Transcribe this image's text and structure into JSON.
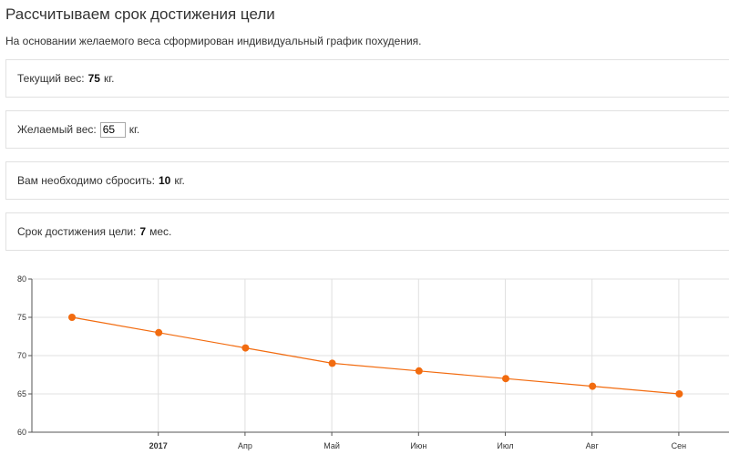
{
  "header": {
    "title": "Рассчитываем срок достижения цели",
    "intro": "На основании желаемого веса сформирован индивидуальный график похудения."
  },
  "current_weight": {
    "label": "Текущий вес:",
    "value": "75",
    "unit": "кг."
  },
  "target_weight": {
    "label": "Желаемый вес:",
    "value": "65",
    "unit": "кг."
  },
  "to_lose": {
    "label": "Вам необходимо сбросить:",
    "value": "10",
    "unit": "кг."
  },
  "deadline": {
    "label": "Срок достижения цели:",
    "value": "7",
    "unit": "мес."
  },
  "chart_data": {
    "type": "line",
    "title": "",
    "xlabel": "",
    "ylabel": "",
    "x": [
      "2017-02",
      "2017-03",
      "2017-04",
      "2017-05",
      "2017-06",
      "2017-07",
      "2017-08",
      "2017-09"
    ],
    "series": [
      {
        "values": [
          75,
          73,
          71,
          69,
          68,
          67,
          66,
          65
        ],
        "color": "#f26b0f"
      }
    ],
    "ylim": [
      60,
      80
    ],
    "yticks": [
      "60",
      "65",
      "70",
      "75",
      "80"
    ],
    "xtick_labels": [
      {
        "label": "2017",
        "bold": true
      },
      {
        "label": "Апр",
        "bold": false
      },
      {
        "label": "Май",
        "bold": false
      },
      {
        "label": "Июн",
        "bold": false
      },
      {
        "label": "Июл",
        "bold": false
      },
      {
        "label": "Авг",
        "bold": false
      },
      {
        "label": "Сен",
        "bold": false
      }
    ],
    "grid": true,
    "grid_color": "#e0e0e0",
    "axis_color": "#555555"
  }
}
